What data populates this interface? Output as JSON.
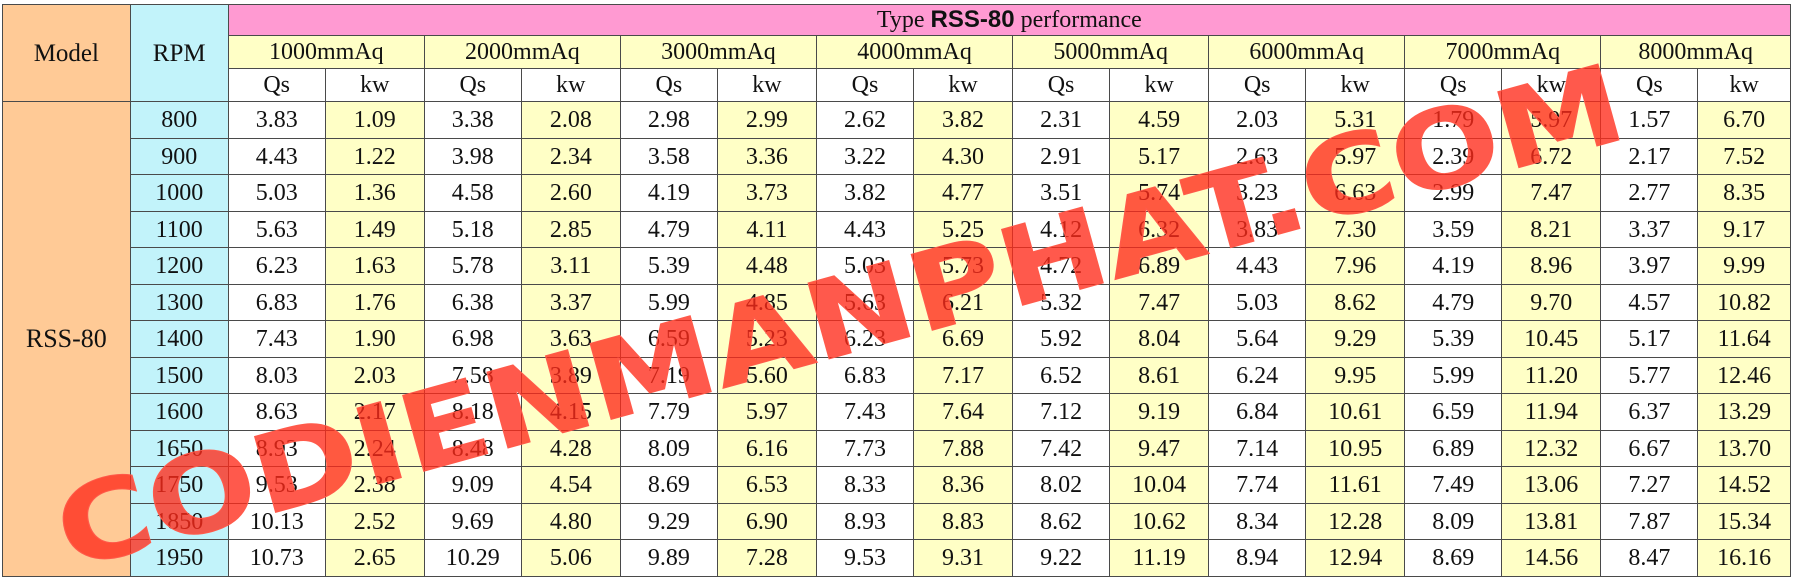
{
  "header": {
    "model_label": "Model",
    "rpm_label": "RPM",
    "title_prefix": "Type ",
    "title_bold": "RSS-80",
    "title_suffix": " performance"
  },
  "pressures": [
    "1000mmAq",
    "2000mmAq",
    "3000mmAq",
    "4000mmAq",
    "5000mmAq",
    "6000mmAq",
    "7000mmAq",
    "8000mmAq"
  ],
  "units": {
    "qs": "Qs",
    "kw": "kw"
  },
  "model": "RSS-80",
  "rows": [
    {
      "rpm": "800",
      "values": [
        "3.83",
        "1.09",
        "3.38",
        "2.08",
        "2.98",
        "2.99",
        "2.62",
        "3.82",
        "2.31",
        "4.59",
        "2.03",
        "5.31",
        "1.79",
        "5.97",
        "1.57",
        "6.70"
      ]
    },
    {
      "rpm": "900",
      "values": [
        "4.43",
        "1.22",
        "3.98",
        "2.34",
        "3.58",
        "3.36",
        "3.22",
        "4.30",
        "2.91",
        "5.17",
        "2.63",
        "5.97",
        "2.39",
        "6.72",
        "2.17",
        "7.52"
      ]
    },
    {
      "rpm": "1000",
      "values": [
        "5.03",
        "1.36",
        "4.58",
        "2.60",
        "4.19",
        "3.73",
        "3.82",
        "4.77",
        "3.51",
        "5.74",
        "3.23",
        "6.63",
        "2.99",
        "7.47",
        "2.77",
        "8.35"
      ]
    },
    {
      "rpm": "1100",
      "values": [
        "5.63",
        "1.49",
        "5.18",
        "2.85",
        "4.79",
        "4.11",
        "4.43",
        "5.25",
        "4.12",
        "6.32",
        "3.83",
        "7.30",
        "3.59",
        "8.21",
        "3.37",
        "9.17"
      ]
    },
    {
      "rpm": "1200",
      "values": [
        "6.23",
        "1.63",
        "5.78",
        "3.11",
        "5.39",
        "4.48",
        "5.03",
        "5.73",
        "4.72",
        "6.89",
        "4.43",
        "7.96",
        "4.19",
        "8.96",
        "3.97",
        "9.99"
      ]
    },
    {
      "rpm": "1300",
      "values": [
        "6.83",
        "1.76",
        "6.38",
        "3.37",
        "5.99",
        "4.85",
        "5.63",
        "6.21",
        "5.32",
        "7.47",
        "5.03",
        "8.62",
        "4.79",
        "9.70",
        "4.57",
        "10.82"
      ]
    },
    {
      "rpm": "1400",
      "values": [
        "7.43",
        "1.90",
        "6.98",
        "3.63",
        "6.59",
        "5.23",
        "6.23",
        "6.69",
        "5.92",
        "8.04",
        "5.64",
        "9.29",
        "5.39",
        "10.45",
        "5.17",
        "11.64"
      ]
    },
    {
      "rpm": "1500",
      "values": [
        "8.03",
        "2.03",
        "7.58",
        "3.89",
        "7.19",
        "5.60",
        "6.83",
        "7.17",
        "6.52",
        "8.61",
        "6.24",
        "9.95",
        "5.99",
        "11.20",
        "5.77",
        "12.46"
      ]
    },
    {
      "rpm": "1600",
      "values": [
        "8.63",
        "2.17",
        "8.18",
        "4.15",
        "7.79",
        "5.97",
        "7.43",
        "7.64",
        "7.12",
        "9.19",
        "6.84",
        "10.61",
        "6.59",
        "11.94",
        "6.37",
        "13.29"
      ]
    },
    {
      "rpm": "1650",
      "values": [
        "8.93",
        "2.24",
        "8.48",
        "4.28",
        "8.09",
        "6.16",
        "7.73",
        "7.88",
        "7.42",
        "9.47",
        "7.14",
        "10.95",
        "6.89",
        "12.32",
        "6.67",
        "13.70"
      ]
    },
    {
      "rpm": "1750",
      "values": [
        "9.53",
        "2.38",
        "9.09",
        "4.54",
        "8.69",
        "6.53",
        "8.33",
        "8.36",
        "8.02",
        "10.04",
        "7.74",
        "11.61",
        "7.49",
        "13.06",
        "7.27",
        "14.52"
      ]
    },
    {
      "rpm": "1850",
      "values": [
        "10.13",
        "2.52",
        "9.69",
        "4.80",
        "9.29",
        "6.90",
        "8.93",
        "8.83",
        "8.62",
        "10.62",
        "8.34",
        "12.28",
        "8.09",
        "13.81",
        "7.87",
        "15.34"
      ]
    },
    {
      "rpm": "1950",
      "values": [
        "10.73",
        "2.65",
        "10.29",
        "5.06",
        "9.89",
        "7.28",
        "9.53",
        "9.31",
        "9.22",
        "11.19",
        "8.94",
        "12.94",
        "8.69",
        "14.56",
        "8.47",
        "16.16"
      ]
    }
  ],
  "watermark": {
    "text": "CODIENMANPHAT.COM",
    "color": "#ff2a1a"
  }
}
